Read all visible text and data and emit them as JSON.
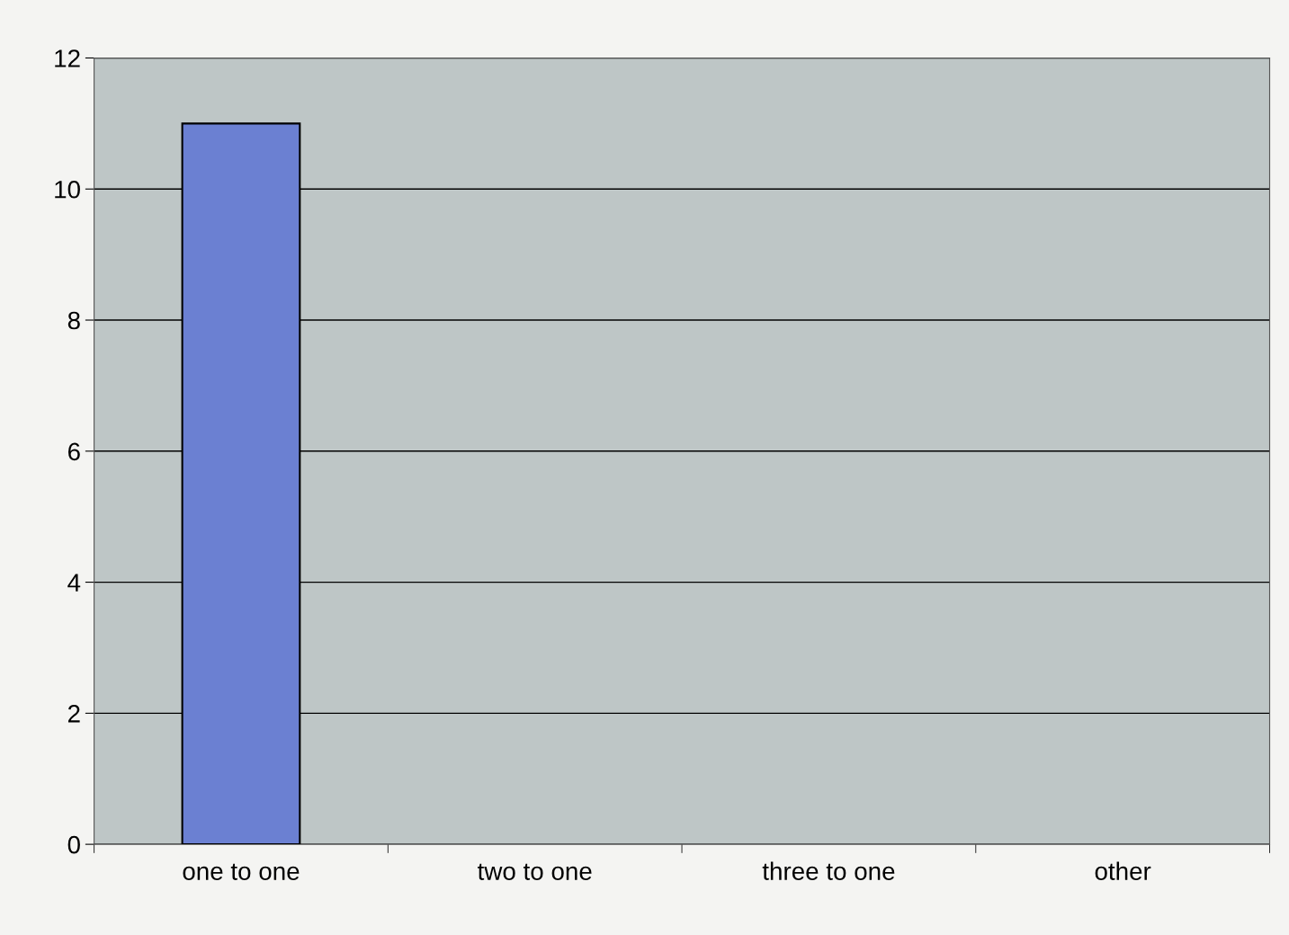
{
  "chart_data": {
    "type": "bar",
    "categories": [
      "one to one",
      "two to one",
      "three to one",
      "other"
    ],
    "values": [
      11,
      0,
      0,
      0
    ],
    "color": "#6b80d2",
    "ylim": [
      0,
      12
    ],
    "yticks": [
      0,
      2,
      4,
      6,
      8,
      10,
      12
    ],
    "grid": "y"
  }
}
